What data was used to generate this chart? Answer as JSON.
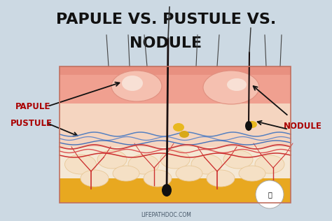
{
  "title_line1": "PAPULE VS. PUSTULE VS.",
  "title_line2": "NODULE",
  "bg_color": "#ccd9e3",
  "label_papule": "PAPULE",
  "label_pustule": "PUSTULE",
  "label_nodule": "NODULE",
  "label_color": "#aa0000",
  "website": "LIFEPATHDOC.COM",
  "title_fontsize": 16,
  "label_fontsize": 8.5,
  "website_fontsize": 5.5
}
